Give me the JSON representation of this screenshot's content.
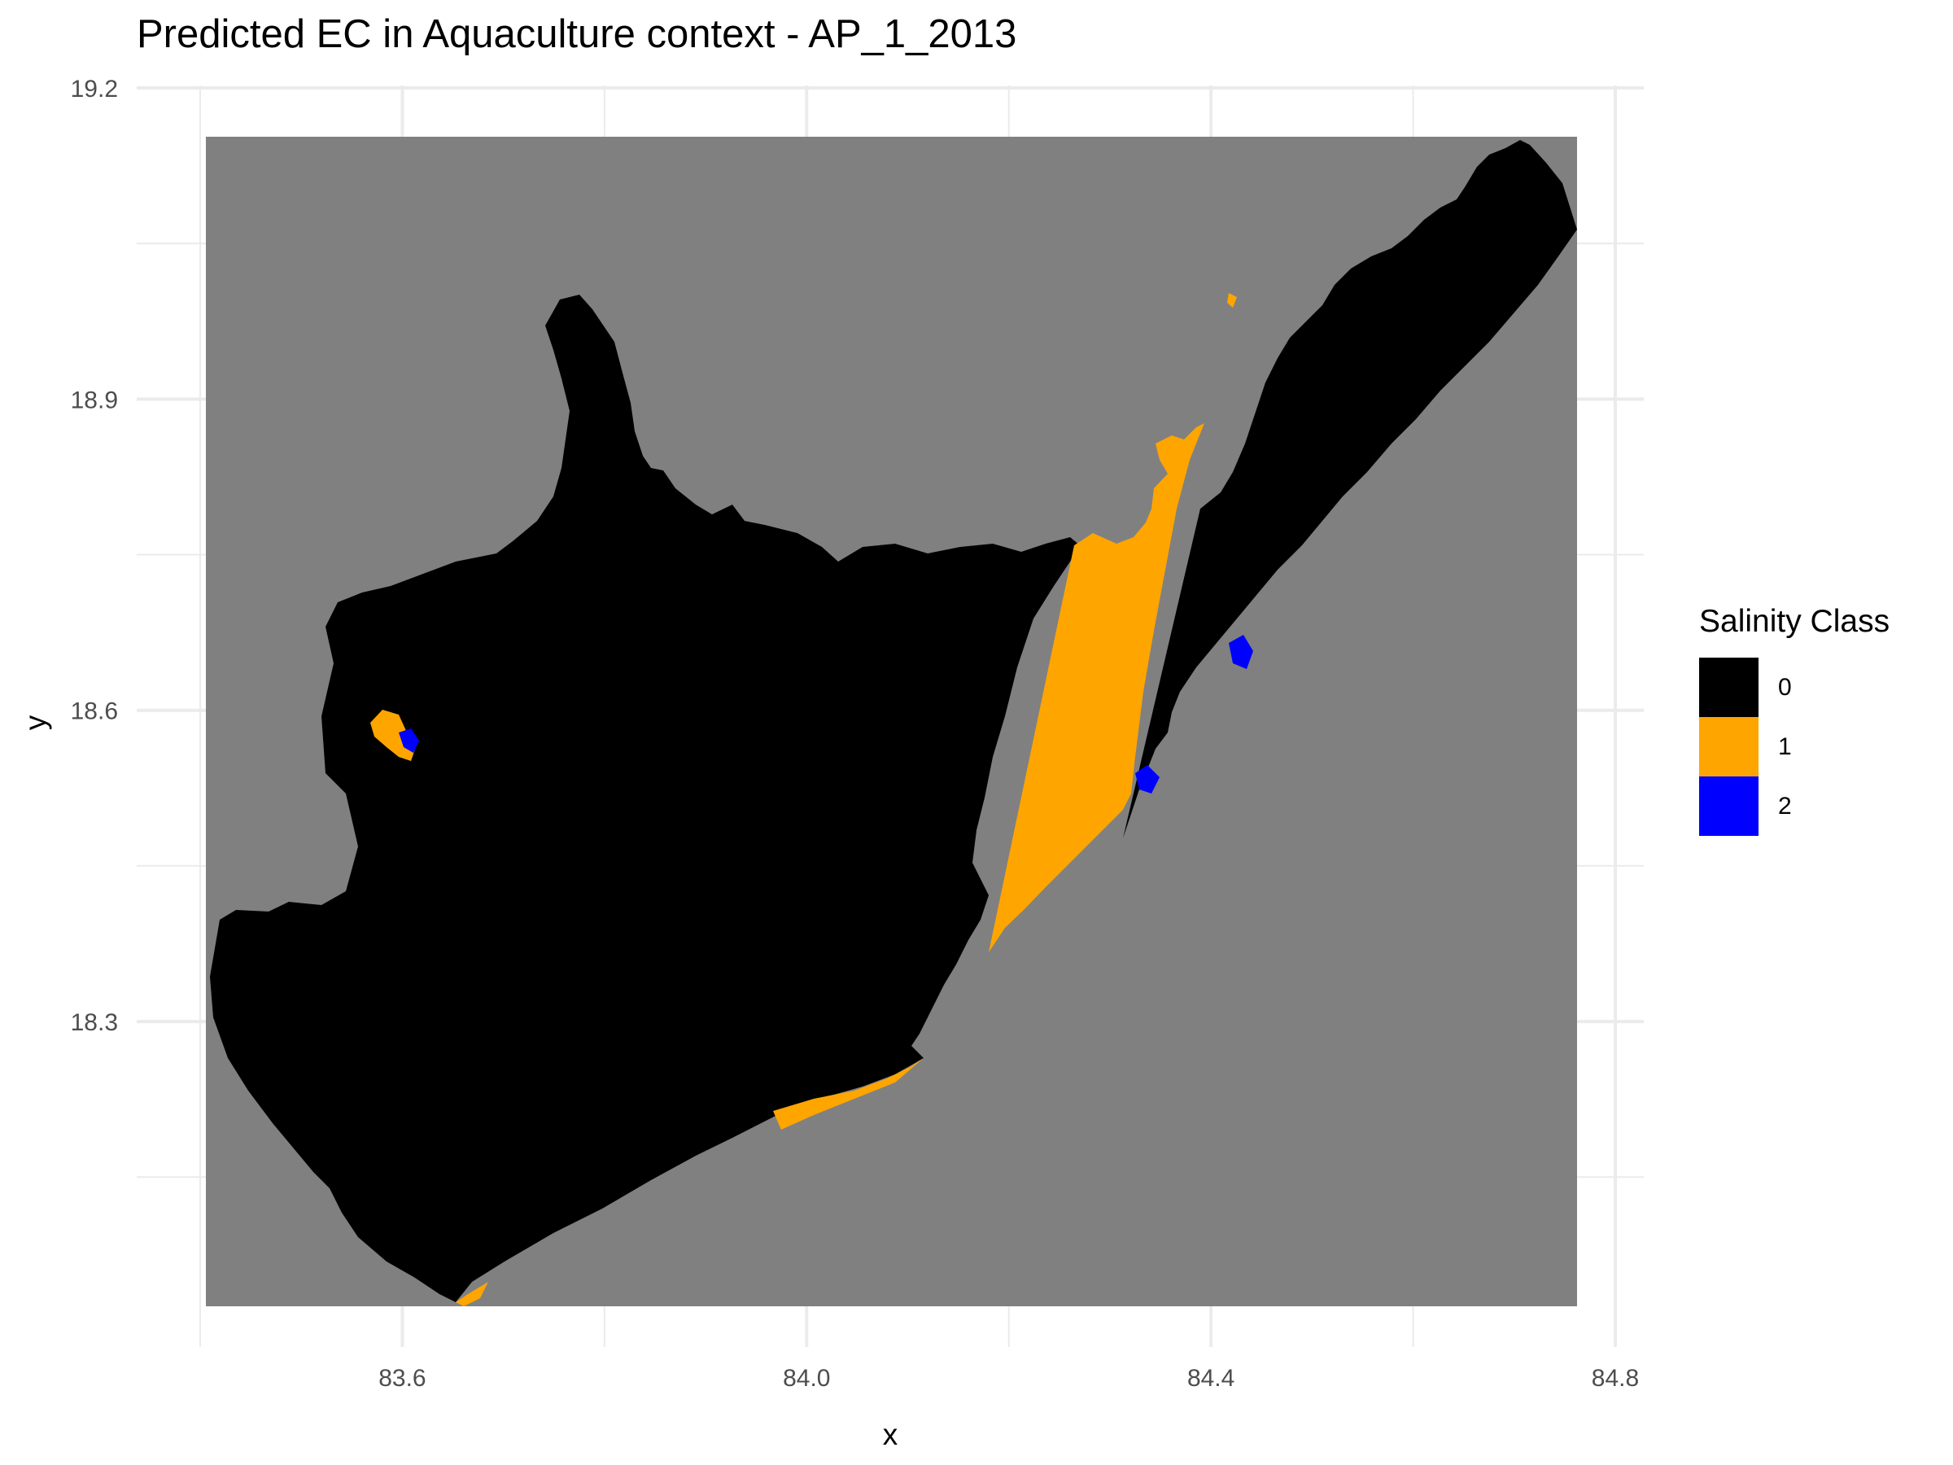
{
  "title": "Predicted EC in Aquaculture context - AP_1_2013",
  "chart_data": {
    "type": "raster-map",
    "title": "Predicted EC in Aquaculture context - AP_1_2013",
    "xlabel": "x",
    "ylabel": "y",
    "x_ticks": [
      "83.6",
      "84.0",
      "84.4",
      "84.8"
    ],
    "y_ticks": [
      "19.2",
      "18.9",
      "18.6",
      "18.3"
    ],
    "xlim": [
      83.4,
      84.8
    ],
    "ylim": [
      18.1,
      19.2
    ],
    "grid": true,
    "legend": {
      "title": "Salinity Class",
      "placement": "right",
      "classes": [
        {
          "label": "0",
          "color": "#000000"
        },
        {
          "label": "1",
          "color": "#FFA500"
        },
        {
          "label": "2",
          "color": "#0000FF"
        }
      ]
    },
    "background_color": "#808080"
  }
}
